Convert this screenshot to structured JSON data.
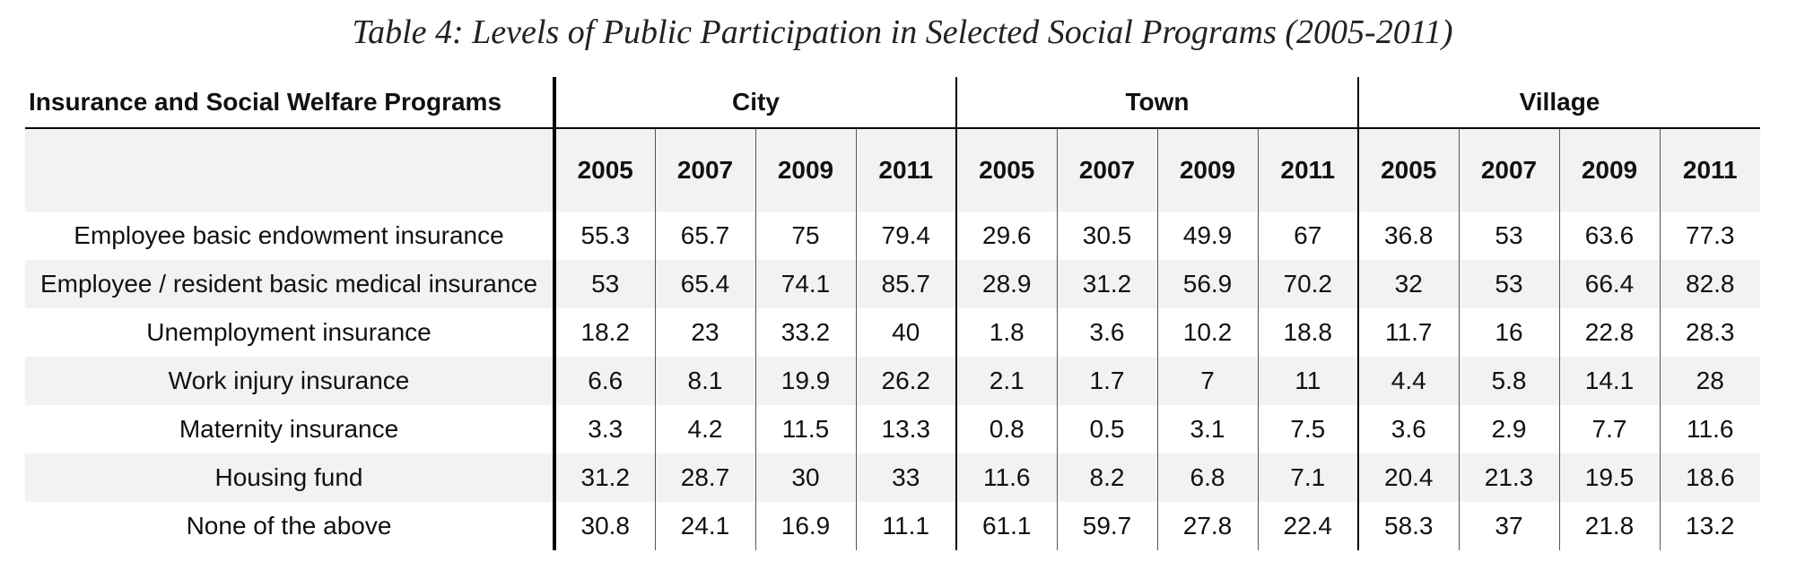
{
  "title": "Table 4: Levels of Public Participation in Selected Social Programs (2005-2011)",
  "header": {
    "corner_label": "Insurance and Social Welfare Programs",
    "groups": [
      "City",
      "Town",
      "Village"
    ],
    "years": [
      "2005",
      "2007",
      "2009",
      "2011"
    ]
  },
  "rows": [
    {
      "label": "Employee basic endowment insurance",
      "values": [
        "55.3",
        "65.7",
        "75",
        "79.4",
        "29.6",
        "30.5",
        "49.9",
        "67",
        "36.8",
        "53",
        "63.6",
        "77.3"
      ]
    },
    {
      "label": "Employee / resident basic medical insurance",
      "values": [
        "53",
        "65.4",
        "74.1",
        "85.7",
        "28.9",
        "31.2",
        "56.9",
        "70.2",
        "32",
        "53",
        "66.4",
        "82.8"
      ]
    },
    {
      "label": "Unemployment insurance",
      "values": [
        "18.2",
        "23",
        "33.2",
        "40",
        "1.8",
        "3.6",
        "10.2",
        "18.8",
        "11.7",
        "16",
        "22.8",
        "28.3"
      ]
    },
    {
      "label": "Work injury insurance",
      "values": [
        "6.6",
        "8.1",
        "19.9",
        "26.2",
        "2.1",
        "1.7",
        "7",
        "11",
        "4.4",
        "5.8",
        "14.1",
        "28"
      ]
    },
    {
      "label": "Maternity insurance",
      "values": [
        "3.3",
        "4.2",
        "11.5",
        "13.3",
        "0.8",
        "0.5",
        "3.1",
        "7.5",
        "3.6",
        "2.9",
        "7.7",
        "11.6"
      ]
    },
    {
      "label": "Housing fund",
      "values": [
        "31.2",
        "28.7",
        "30",
        "33",
        "11.6",
        "8.2",
        "6.8",
        "7.1",
        "20.4",
        "21.3",
        "19.5",
        "18.6"
      ]
    },
    {
      "label": "None of the above",
      "values": [
        "30.8",
        "24.1",
        "16.9",
        "11.1",
        "61.1",
        "59.7",
        "27.8",
        "22.4",
        "58.3",
        "37",
        "21.8",
        "13.2"
      ]
    }
  ]
}
